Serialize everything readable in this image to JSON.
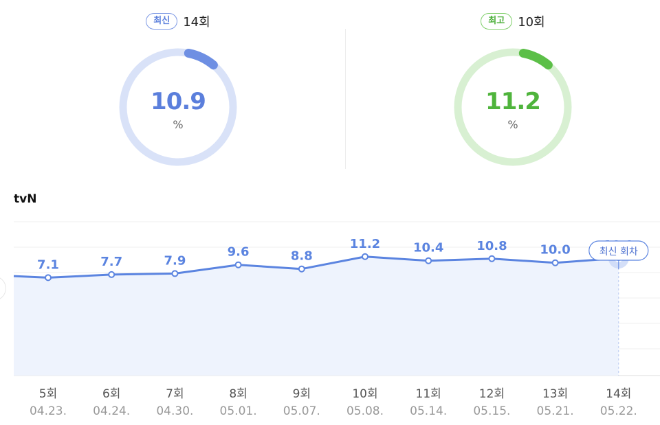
{
  "summary": {
    "latest": {
      "badge": "최신",
      "episode": "14회",
      "value": "10.9",
      "unit": "%",
      "color": "#5b7fdc",
      "track": "#d9e2f8"
    },
    "best": {
      "badge": "최고",
      "episode": "10회",
      "value": "11.2",
      "unit": "%",
      "color": "#5cbf48",
      "track": "#d8f0d2"
    }
  },
  "channel": "tvN",
  "chart_data": {
    "type": "line",
    "series": [
      {
        "name": "tvN",
        "values": [
          7.1,
          7.7,
          7.9,
          9.6,
          8.8,
          11.2,
          10.4,
          10.8,
          10.0,
          10.9
        ]
      }
    ],
    "categories": [
      "5회",
      "6회",
      "7회",
      "8회",
      "9회",
      "10회",
      "11회",
      "12회",
      "13회",
      "14회"
    ],
    "dates": [
      "04.23.",
      "04.24.",
      "04.30.",
      "05.01.",
      "05.07.",
      "05.08.",
      "05.14.",
      "05.15.",
      "05.21.",
      "05.22."
    ],
    "previous_value": 7.4,
    "ylim": [
      -12,
      18
    ],
    "grid": true,
    "latest_label": "최신 회차",
    "line_color": "#5b84e0",
    "fill_color": "#eef3fd"
  }
}
